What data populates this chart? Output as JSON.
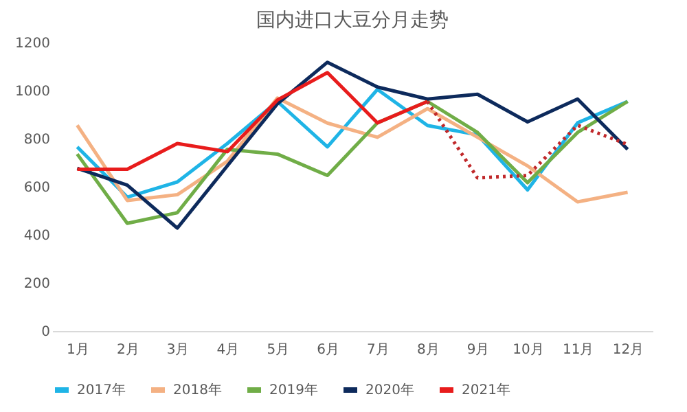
{
  "chart_data": {
    "type": "line",
    "title": "国内进口大豆分月走势",
    "categories": [
      "1月",
      "2月",
      "3月",
      "4月",
      "5月",
      "6月",
      "7月",
      "8月",
      "9月",
      "10月",
      "11月",
      "12月"
    ],
    "series": [
      {
        "name": "2017年",
        "color": "#1fb4e6",
        "values": [
          766,
          557,
          620,
          780,
          955,
          766,
          1005,
          855,
          816,
          587,
          866,
          955
        ]
      },
      {
        "name": "2018年",
        "color": "#f4b183",
        "values": [
          856,
          543,
          567,
          706,
          969,
          865,
          806,
          925,
          806,
          687,
          537,
          577
        ]
      },
      {
        "name": "2019年",
        "color": "#70ad47",
        "values": [
          736,
          448,
          492,
          756,
          736,
          647,
          866,
          955,
          826,
          617,
          826,
          955
        ]
      },
      {
        "name": "2020年",
        "color": "#0d2a5c",
        "values": [
          677,
          607,
          428,
          687,
          945,
          1118,
          1015,
          965,
          985,
          870,
          965,
          756
        ]
      },
      {
        "name": "2021年",
        "color": "#e81c1c",
        "values": [
          673,
          673,
          780,
          746,
          961,
          1075,
          866,
          955,
          null,
          null,
          null,
          null
        ]
      },
      {
        "color": "#c0282a",
        "line_style": "dotted",
        "values": [
          null,
          null,
          null,
          null,
          null,
          null,
          null,
          955,
          637,
          647,
          856,
          776
        ]
      }
    ],
    "ylim": [
      0,
      1200
    ],
    "yticks": [
      0,
      200,
      400,
      600,
      800,
      1000,
      1200
    ],
    "grid": false,
    "legend": "bottom"
  }
}
